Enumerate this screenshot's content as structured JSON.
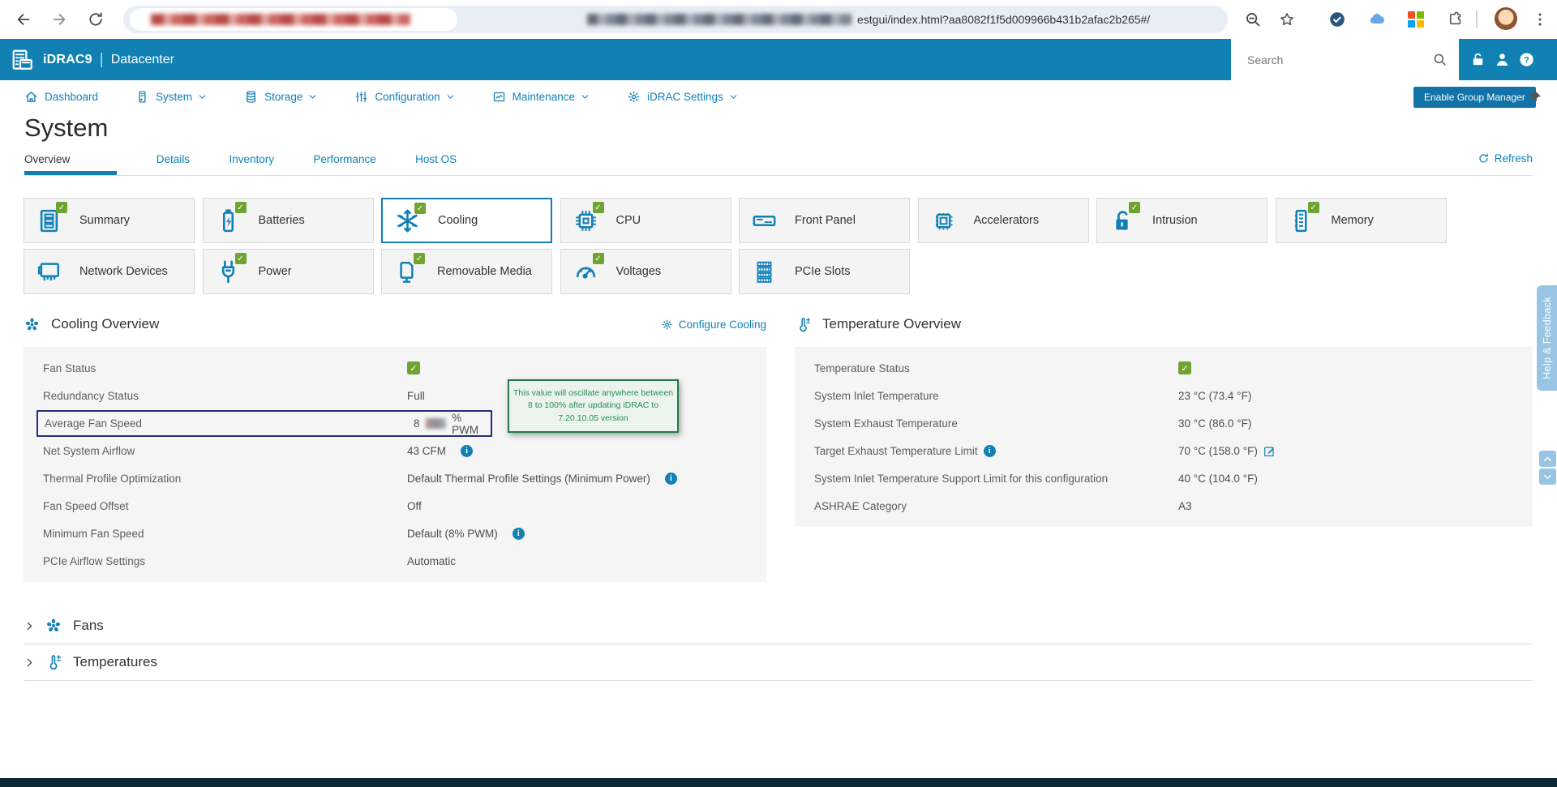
{
  "colors": {
    "accent": "#1280b5",
    "header_bg": "#1180b2",
    "green": "#70a32f",
    "highlight_border": "#262d7e",
    "tooltip_border": "#237a46",
    "tooltip_bg": "#eaf4ec",
    "tooltip_text": "#2c8c55",
    "help_tab_bg": "#97c5e3",
    "bottom_bar": "#0e2835"
  },
  "browser": {
    "url_suffix": "estgui/index.html?aa8082f1f5d009966b431b2afac2b265#/"
  },
  "header": {
    "brand": "iDRAC9",
    "divider": "|",
    "edition": "Datacenter",
    "search_placeholder": "Search"
  },
  "nav": {
    "items": [
      {
        "label": "Dashboard",
        "icon": "home-icon",
        "dropdown": false
      },
      {
        "label": "System",
        "icon": "server-icon",
        "dropdown": true
      },
      {
        "label": "Storage",
        "icon": "storage-icon",
        "dropdown": true
      },
      {
        "label": "Configuration",
        "icon": "sliders-icon",
        "dropdown": true
      },
      {
        "label": "Maintenance",
        "icon": "chart-box-icon",
        "dropdown": true
      },
      {
        "label": "iDRAC Settings",
        "icon": "gear-icon",
        "dropdown": true
      }
    ],
    "group_manager_label": "Enable Group Manager"
  },
  "page": {
    "title": "System",
    "tabs": [
      {
        "label": "Overview",
        "active": true
      },
      {
        "label": "Details"
      },
      {
        "label": "Inventory"
      },
      {
        "label": "Performance"
      },
      {
        "label": "Host OS"
      }
    ],
    "refresh_label": "Refresh"
  },
  "tiles": [
    {
      "label": "Summary",
      "icon": "summary-icon",
      "checked": true
    },
    {
      "label": "Batteries",
      "icon": "battery-icon",
      "checked": true
    },
    {
      "label": "Cooling",
      "icon": "snowflake-icon",
      "checked": true,
      "selected": true
    },
    {
      "label": "CPU",
      "icon": "cpu-icon",
      "checked": true
    },
    {
      "label": "Front Panel",
      "icon": "front-panel-icon",
      "checked": false
    },
    {
      "label": "Accelerators",
      "icon": "accelerator-icon",
      "checked": false
    },
    {
      "label": "Intrusion",
      "icon": "lock-icon",
      "checked": true
    },
    {
      "label": "Memory",
      "icon": "memory-icon",
      "checked": true
    },
    {
      "label": "Network Devices",
      "icon": "network-card-icon",
      "checked": false
    },
    {
      "label": "Power",
      "icon": "plug-icon",
      "checked": true
    },
    {
      "label": "Removable Media",
      "icon": "media-icon",
      "checked": true
    },
    {
      "label": "Voltages",
      "icon": "gauge-icon",
      "checked": true
    },
    {
      "label": "PCIe Slots",
      "icon": "pcie-icon",
      "checked": false
    }
  ],
  "cooling": {
    "title": "Cooling Overview",
    "action_label": "Configure Cooling",
    "rows": [
      {
        "label": "Fan Status",
        "check": true
      },
      {
        "label": "Redundancy Status",
        "value": "Full"
      },
      {
        "label": "Average Fan Speed",
        "value_prefix": "8",
        "redacted": true,
        "value_suffix": "% PWM",
        "highlighted": true
      },
      {
        "label": "Net System Airflow",
        "value": "43 CFM",
        "info": true
      },
      {
        "label": "Thermal Profile Optimization",
        "value": "Default Thermal Profile Settings (Minimum Power)",
        "info": true
      },
      {
        "label": "Fan Speed Offset",
        "value": "Off"
      },
      {
        "label": "Minimum Fan Speed",
        "value": "Default (8% PWM)",
        "info": true
      },
      {
        "label": "PCIe Airflow Settings",
        "value": "Automatic"
      }
    ],
    "tooltip": {
      "line1": "This value will oscillate anywhere between",
      "line2": "8 to 100% after updating iDRAC to",
      "line3": "7.20.10.05 version"
    }
  },
  "temperature": {
    "title": "Temperature Overview",
    "rows": [
      {
        "label": "Temperature Status",
        "check": true
      },
      {
        "label": "System Inlet Temperature",
        "value": "23 °C (73.4 °F)"
      },
      {
        "label": "System Exhaust Temperature",
        "value": "30 °C (86.0 °F)"
      },
      {
        "label": "Target Exhaust Temperature Limit",
        "label_info": true,
        "value": "70 °C (158.0 °F)",
        "edit": true
      },
      {
        "label": "System Inlet Temperature Support Limit for this configuration",
        "value": "40 °C (104.0 °F)"
      },
      {
        "label": "ASHRAE Category",
        "value": "A3"
      }
    ]
  },
  "collapsed_sections": [
    {
      "label": "Fans",
      "icon": "fan-icon"
    },
    {
      "label": "Temperatures",
      "icon": "thermometer-icon"
    }
  ],
  "help_tab_label": "Help & Feedback"
}
